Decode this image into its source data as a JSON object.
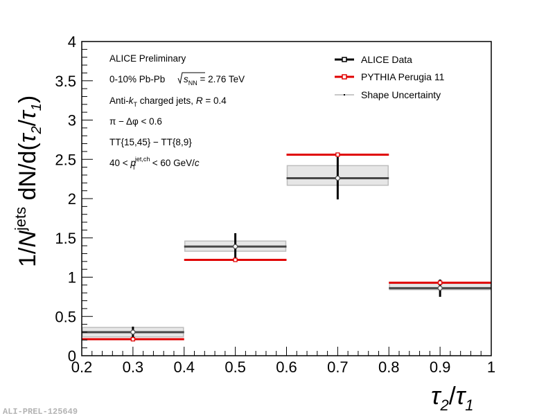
{
  "chart_data": {
    "type": "scatter",
    "title": "",
    "xlabel": "τ2/τ1",
    "ylabel": "1/N^jets dN/d(τ2/τ1)",
    "xlim": [
      0.2,
      1.0
    ],
    "ylim": [
      0,
      4
    ],
    "x_ticks": [
      "0.2",
      "0.3",
      "0.4",
      "0.5",
      "0.6",
      "0.7",
      "0.8",
      "0.9",
      "1"
    ],
    "y_ticks": [
      "0",
      "0.5",
      "1",
      "1.5",
      "2",
      "2.5",
      "3",
      "3.5",
      "4"
    ],
    "bins": [
      [
        0.2,
        0.4
      ],
      [
        0.4,
        0.6
      ],
      [
        0.6,
        0.8
      ],
      [
        0.8,
        1.0
      ]
    ],
    "series": [
      {
        "name": "ALICE Data",
        "color": "#000000",
        "x": [
          0.3,
          0.5,
          0.7,
          0.9
        ],
        "values": [
          0.3,
          1.39,
          2.26,
          0.86
        ],
        "stat_err": [
          0.07,
          0.17,
          0.27,
          0.11
        ]
      },
      {
        "name": "PYTHIA Perugia 11",
        "color": "#e00000",
        "x": [
          0.3,
          0.5,
          0.7,
          0.9
        ],
        "values": [
          0.21,
          1.22,
          2.56,
          0.93
        ]
      },
      {
        "name": "Shape Uncertainty",
        "color": "#c8c8c8",
        "x": [
          0.3,
          0.5,
          0.7,
          0.9
        ],
        "values": [
          0.3,
          1.39,
          2.29,
          0.88
        ],
        "low": [
          0.24,
          1.33,
          2.17,
          0.84
        ],
        "high": [
          0.36,
          1.46,
          2.42,
          0.92
        ]
      }
    ],
    "annotations": {
      "line1": "ALICE Preliminary",
      "line2_pre": "0-10% Pb-Pb ",
      "line2_sqrt": "s",
      "line2_sub": "NN",
      "line2_post": " = 2.76 TeV",
      "line3_a": "Anti-",
      "line3_k": "k",
      "line3_ksub": "T",
      "line3_b": "  charged jets, ",
      "line3_r": "R",
      "line3_c": " = 0.4",
      "line4": "π − Δφ < 0.6",
      "line5": "TT{15,45} − TT{8,9}",
      "line6_a": "40 < ",
      "line6_p": "p",
      "line6_sup": "jet,ch",
      "line6_sub": "T",
      "line6_b": " < 60 GeV/",
      "line6_c": "c"
    },
    "y_title_parts": {
      "pre": "1/",
      "n": "N",
      "sup": "jets",
      "mid": " dN/d(",
      "t2": "τ",
      "s2": "2",
      "slash": "/",
      "t1": "τ",
      "s1": "1",
      "end": ")"
    },
    "x_title_parts": {
      "t2": "τ",
      "s2": "2",
      "slash": "/",
      "t1": "τ",
      "s1": "1"
    },
    "legend_position": "top-right",
    "tag": "ALI-PREL-125649"
  }
}
